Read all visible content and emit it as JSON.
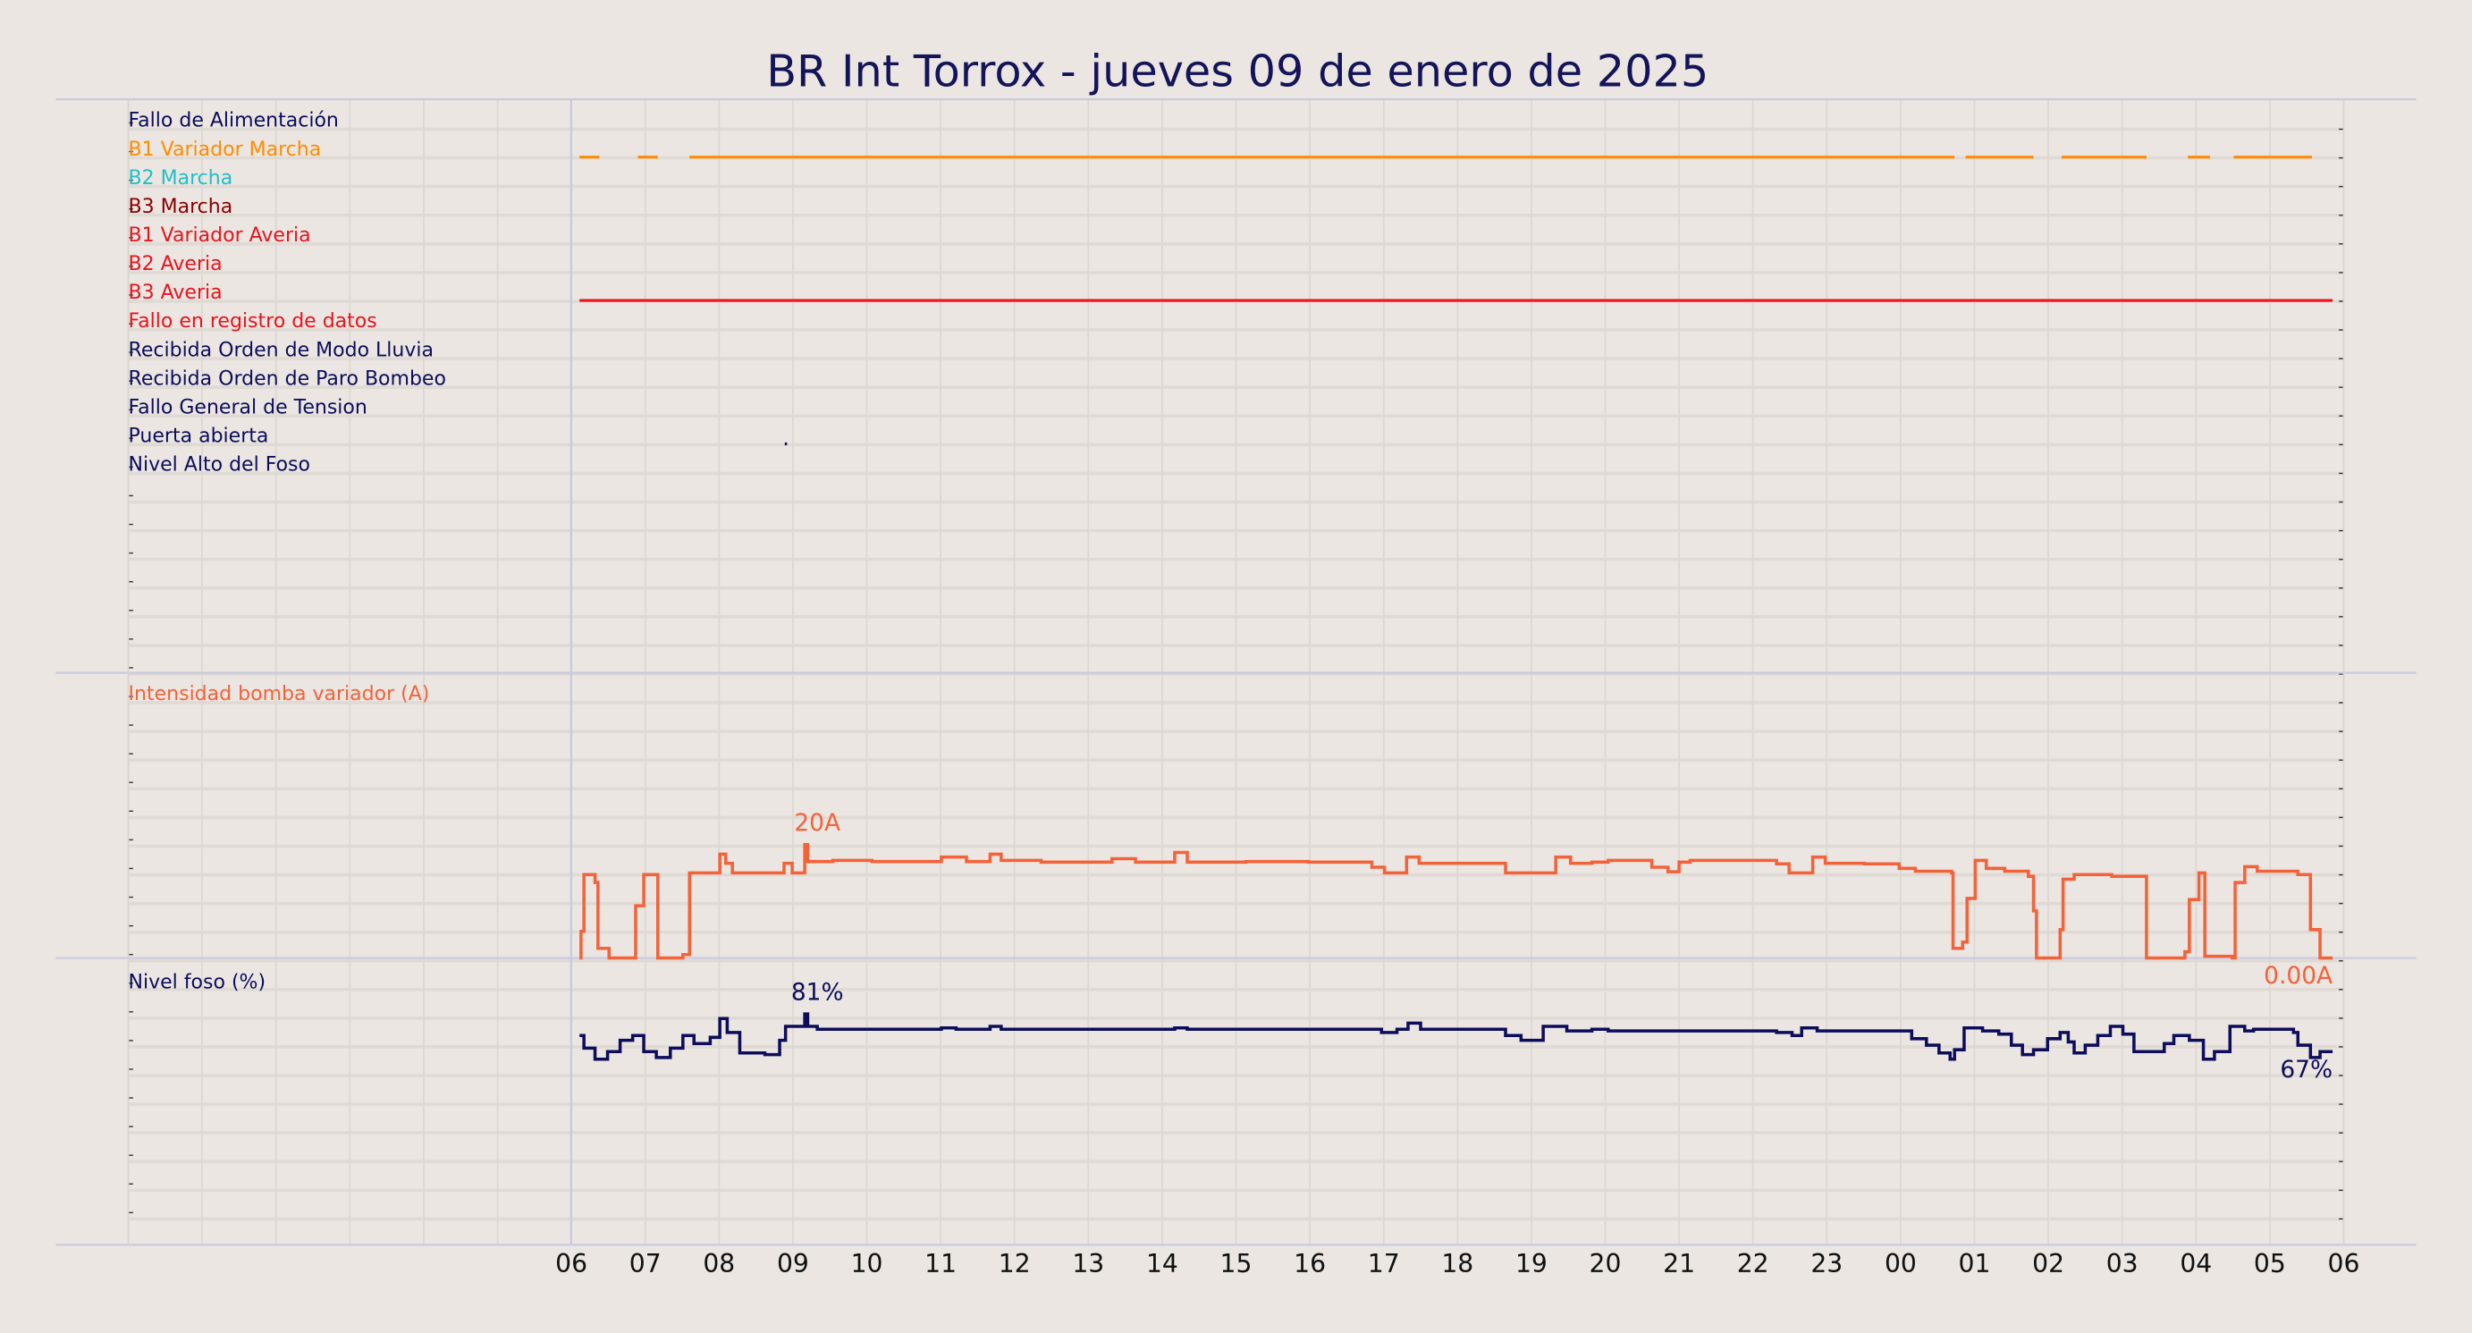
{
  "chart_data": [
    {
      "type": "timeline",
      "title": "BR Int Torrox   -   jueves 09 de enero de 2025",
      "xlim": [
        -6,
        24
      ],
      "signals": [
        {
          "name": "Fallo de Alimentación",
          "color": "#0d0d5c",
          "intervals": []
        },
        {
          "name": "B1 Variador Marcha",
          "color": "#ff8c00",
          "intervals": [
            [
              0.11,
              0.38
            ],
            [
              0.9,
              1.17
            ],
            [
              1.6,
              18.73
            ],
            [
              18.88,
              19.8
            ],
            [
              20.18,
              21.33
            ],
            [
              21.89,
              22.19
            ],
            [
              22.51,
              23.57
            ]
          ]
        },
        {
          "name": "B2 Marcha",
          "color": "#1fc0c8",
          "intervals": []
        },
        {
          "name": "B3 Marcha",
          "color": "#8b0000",
          "intervals": []
        },
        {
          "name": "B1 Variador Averia",
          "color": "#e8141e",
          "intervals": []
        },
        {
          "name": "B2 Averia",
          "color": "#e8141e",
          "intervals": []
        },
        {
          "name": "B3 Averia",
          "color": "#e8141e",
          "intervals": [
            [
              0.11,
              23.85
            ]
          ]
        },
        {
          "name": "Fallo en registro de datos",
          "color": "#e8141e",
          "intervals": []
        },
        {
          "name": "Recibida Orden de Modo Lluvia",
          "color": "#0d0d5c",
          "intervals": []
        },
        {
          "name": "Recibida Orden de Paro Bombeo",
          "color": "#0d0d5c",
          "intervals": []
        },
        {
          "name": "Fallo General de Tension",
          "color": "#0d0d5c",
          "intervals": []
        },
        {
          "name": "Puerta abierta",
          "color": "#0d0d5c",
          "intervals": [
            [
              2.89,
              2.92
            ]
          ]
        },
        {
          "name": "Nivel Alto del Foso",
          "color": "#0d0d5c",
          "intervals": []
        }
      ]
    },
    {
      "type": "step",
      "ylabel": "Intensidad bomba variador (A)",
      "color": "#f4623a",
      "xlim": [
        -6,
        24
      ],
      "ylim": [
        0,
        50
      ],
      "x": [
        0.11,
        0.13,
        0.17,
        0.32,
        0.36,
        0.51,
        0.87,
        0.98,
        1.17,
        1.51,
        1.6,
        2.01,
        2.09,
        2.18,
        2.88,
        2.99,
        3.16,
        3.2,
        3.54,
        4.07,
        5.01,
        5.35,
        5.67,
        5.82,
        6.36,
        7.32,
        7.64,
        8.17,
        8.34,
        9.13,
        9.98,
        10.84,
        11.01,
        11.31,
        11.48,
        12.65,
        13.33,
        13.53,
        13.82,
        14.04,
        14.63,
        14.85,
        15.0,
        15.15,
        16.32,
        16.49,
        16.81,
        16.98,
        17.51,
        17.98,
        18.2,
        18.69,
        18.71,
        18.84,
        18.9,
        19.01,
        19.16,
        19.41,
        19.73,
        19.8,
        19.84,
        20.16,
        20.2,
        20.35,
        20.86,
        21.33,
        21.85,
        21.91,
        22.04,
        22.12,
        22.49,
        22.53,
        22.66,
        22.83,
        23.38,
        23.55,
        23.68,
        23.85
      ],
      "values": [
        0,
        4.7,
        14.7,
        13.3,
        1.7,
        0,
        9.2,
        14.7,
        0,
        0.6,
        15,
        18.3,
        16.7,
        15,
        16.7,
        15,
        20,
        17,
        17.2,
        17,
        17.8,
        17,
        18.3,
        17.2,
        16.9,
        17.5,
        16.9,
        18.6,
        16.9,
        17,
        16.9,
        16,
        15,
        17.8,
        16.7,
        15,
        17.8,
        16.7,
        16.9,
        17.2,
        16,
        15.2,
        16.9,
        17.2,
        16.6,
        15,
        17.8,
        16.7,
        16.6,
        15.8,
        15.3,
        15,
        1.7,
        2.8,
        10.5,
        17.2,
        15.8,
        15.3,
        14.4,
        8.3,
        0,
        5,
        13.9,
        14.7,
        14.4,
        0,
        1.1,
        10.3,
        15,
        0.3,
        0,
        13.3,
        16.1,
        15.3,
        14.7,
        5,
        0,
        0
      ],
      "annotations": [
        {
          "label": "20A",
          "x": 3.16,
          "value": 20,
          "position": "above"
        },
        {
          "label": "0.00A",
          "x": 23.85,
          "value": 0,
          "position": "below"
        }
      ]
    },
    {
      "type": "step",
      "ylabel": "Nivel foso (%)",
      "color": "#0d0d5c",
      "xlim": [
        -6,
        24
      ],
      "ylim": [
        0,
        100
      ],
      "x": [
        0.11,
        0.17,
        0.32,
        0.49,
        0.66,
        0.83,
        0.98,
        1.15,
        1.34,
        1.51,
        1.66,
        1.88,
        2.01,
        2.11,
        2.28,
        2.62,
        2.82,
        2.9,
        3.16,
        3.2,
        3.33,
        5.01,
        5.21,
        5.67,
        5.82,
        8.17,
        8.34,
        10.97,
        11.18,
        11.33,
        11.5,
        12.65,
        12.86,
        13.16,
        13.48,
        13.82,
        14.04,
        16.32,
        16.53,
        16.66,
        16.87,
        18.15,
        18.35,
        18.52,
        18.67,
        18.73,
        18.86,
        19.11,
        19.33,
        19.5,
        19.65,
        19.8,
        19.99,
        20.16,
        20.27,
        20.35,
        20.5,
        20.67,
        20.84,
        21.01,
        21.16,
        21.44,
        21.57,
        21.7,
        21.91,
        22.1,
        22.25,
        22.46,
        22.66,
        22.78,
        23.32,
        23.38,
        23.55,
        23.68,
        23.85
      ],
      "values": [
        73,
        68.3,
        64.2,
        67,
        71.2,
        73,
        67,
        64.8,
        68.3,
        73,
        70,
        72.3,
        79.3,
        74.1,
        66.5,
        65.9,
        71.2,
        76.4,
        81,
        76.4,
        75.3,
        75.8,
        75.3,
        76.4,
        75.3,
        75.8,
        75.3,
        74.1,
        75.3,
        77.6,
        75.3,
        73,
        71.2,
        76.4,
        74.7,
        75.3,
        74.7,
        74.1,
        73,
        75.8,
        74.7,
        71.8,
        69.4,
        66.5,
        64.2,
        67.7,
        75.8,
        74.7,
        73.5,
        69.4,
        65.9,
        67.7,
        71.8,
        74.1,
        70.6,
        66.5,
        69.4,
        73,
        76.4,
        73.5,
        67,
        67,
        70,
        73,
        71.2,
        64.2,
        67,
        76.4,
        74.7,
        75.3,
        74.1,
        69.4,
        64.8,
        67,
        67
      ],
      "annotations": [
        {
          "label": "81%",
          "x": 3.16,
          "value": 81,
          "position": "above"
        },
        {
          "label": "67%",
          "x": 23.85,
          "value": 67,
          "position": "below"
        }
      ],
      "xticks": [
        {
          "value": 0,
          "label": "06"
        },
        {
          "value": 1,
          "label": "07"
        },
        {
          "value": 2,
          "label": "08"
        },
        {
          "value": 3,
          "label": "09"
        },
        {
          "value": 4,
          "label": "10"
        },
        {
          "value": 5,
          "label": "11"
        },
        {
          "value": 6,
          "label": "12"
        },
        {
          "value": 7,
          "label": "13"
        },
        {
          "value": 8,
          "label": "14"
        },
        {
          "value": 9,
          "label": "15"
        },
        {
          "value": 10,
          "label": "16"
        },
        {
          "value": 11,
          "label": "17"
        },
        {
          "value": 12,
          "label": "18"
        },
        {
          "value": 13,
          "label": "19"
        },
        {
          "value": 14,
          "label": "20"
        },
        {
          "value": 15,
          "label": "21"
        },
        {
          "value": 16,
          "label": "22"
        },
        {
          "value": 17,
          "label": "23"
        },
        {
          "value": 18,
          "label": "00"
        },
        {
          "value": 19,
          "label": "01"
        },
        {
          "value": 20,
          "label": "02"
        },
        {
          "value": 21,
          "label": "03"
        },
        {
          "value": 22,
          "label": "04"
        },
        {
          "value": 23,
          "label": "05"
        },
        {
          "value": 24,
          "label": "06"
        }
      ]
    }
  ]
}
